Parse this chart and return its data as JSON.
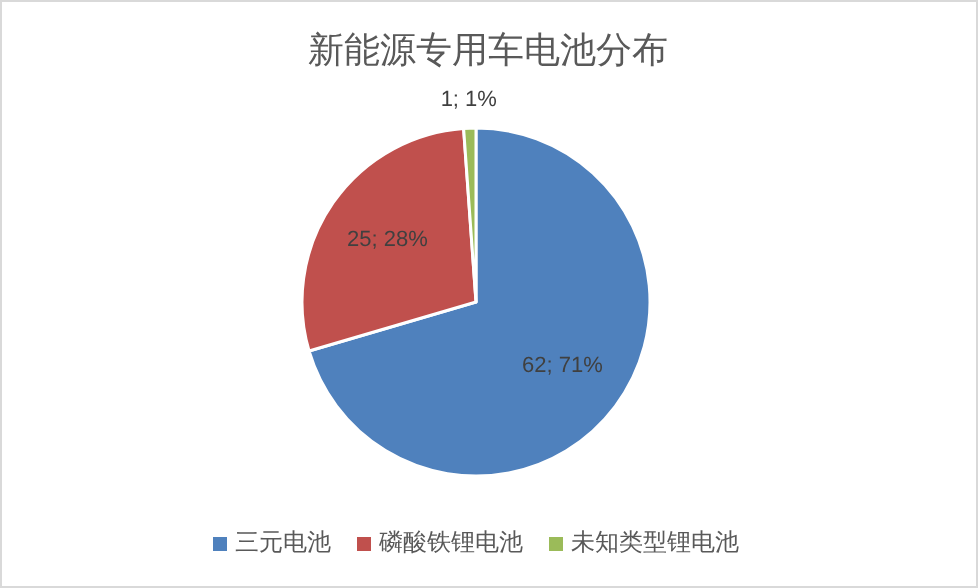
{
  "chart_data": {
    "type": "pie",
    "title": "新能源专用车电池分布",
    "categories": [
      "三元电池",
      "磷酸铁锂电池",
      "未知类型锂电池"
    ],
    "values": [
      62,
      25,
      1
    ],
    "colors": [
      "#4f81bd",
      "#c0504d",
      "#9bbb59"
    ],
    "value_labels": [
      "62; 71%",
      "25; 28%",
      "1; 1%"
    ],
    "legend": "bottom"
  }
}
